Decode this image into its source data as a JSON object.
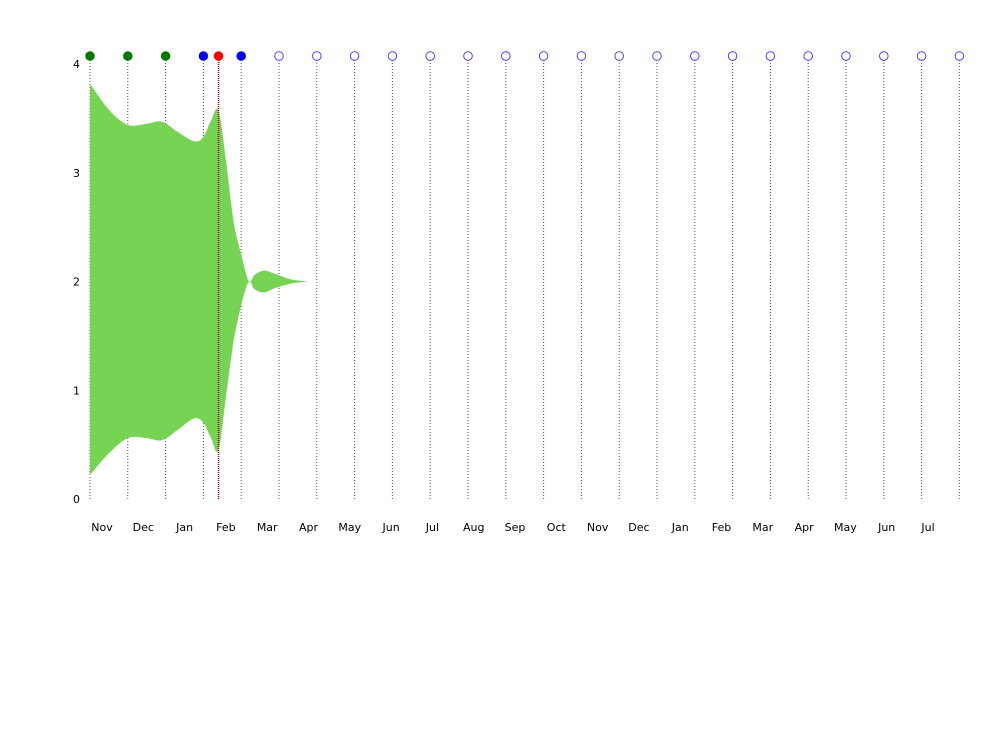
{
  "chart_data": {
    "type": "area",
    "title": "",
    "xlabel": "",
    "ylabel": "",
    "ylim": [
      0,
      4
    ],
    "y_ticks": [
      "0",
      "1",
      "2",
      "3",
      "4"
    ],
    "x_tick_labels": [
      "Nov",
      "Dec",
      "Jan",
      "Feb",
      "Mar",
      "Apr",
      "May",
      "Jun",
      "Jul",
      "Aug",
      "Sep",
      "Oct",
      "Nov",
      "Dec",
      "Jan",
      "Feb",
      "Mar",
      "Apr",
      "May",
      "Jun",
      "Jul"
    ],
    "grid": "vertical dotted lines at each marker",
    "legend": "none",
    "colors": {
      "band": "#77d353",
      "past_marker": "#007700",
      "recent_marker": "#0000ff",
      "current_marker": "#ff0000",
      "future_marker_outline": "#3333ff",
      "current_line": "#aa0000",
      "grid_line": "#555555"
    },
    "markers": [
      {
        "t": 0.0,
        "state": "past"
      },
      {
        "t": 1.0,
        "state": "past"
      },
      {
        "t": 2.0,
        "state": "past"
      },
      {
        "t": 3.0,
        "state": "recent"
      },
      {
        "t": 3.4,
        "state": "current"
      },
      {
        "t": 4.0,
        "state": "recent"
      },
      {
        "t": 5.0,
        "state": "future"
      },
      {
        "t": 6.0,
        "state": "future"
      },
      {
        "t": 7.0,
        "state": "future"
      },
      {
        "t": 8.0,
        "state": "future"
      },
      {
        "t": 9.0,
        "state": "future"
      },
      {
        "t": 10.0,
        "state": "future"
      },
      {
        "t": 11.0,
        "state": "future"
      },
      {
        "t": 12.0,
        "state": "future"
      },
      {
        "t": 13.0,
        "state": "future"
      },
      {
        "t": 14.0,
        "state": "future"
      },
      {
        "t": 15.0,
        "state": "future"
      },
      {
        "t": 16.0,
        "state": "future"
      },
      {
        "t": 17.0,
        "state": "future"
      },
      {
        "t": 18.0,
        "state": "future"
      },
      {
        "t": 19.0,
        "state": "future"
      },
      {
        "t": 20.0,
        "state": "future"
      },
      {
        "t": 21.0,
        "state": "future"
      },
      {
        "t": 22.0,
        "state": "future"
      },
      {
        "t": 23.0,
        "state": "future"
      }
    ],
    "band": {
      "upper": [
        [
          0.0,
          3.82
        ],
        [
          0.5,
          3.58
        ],
        [
          1.0,
          3.44
        ],
        [
          1.5,
          3.45
        ],
        [
          1.9,
          3.47
        ],
        [
          2.3,
          3.38
        ],
        [
          2.75,
          3.29
        ],
        [
          3.0,
          3.33
        ],
        [
          3.2,
          3.48
        ],
        [
          3.4,
          3.57
        ],
        [
          3.6,
          3.1
        ],
        [
          3.8,
          2.55
        ],
        [
          4.0,
          2.25
        ],
        [
          4.2,
          2.0
        ],
        [
          4.35,
          2.06
        ],
        [
          4.6,
          2.1
        ],
        [
          4.9,
          2.07
        ],
        [
          5.3,
          2.02
        ],
        [
          5.75,
          2.0
        ]
      ],
      "lower": [
        [
          0.0,
          0.22
        ],
        [
          0.5,
          0.42
        ],
        [
          1.0,
          0.56
        ],
        [
          1.5,
          0.56
        ],
        [
          1.9,
          0.54
        ],
        [
          2.3,
          0.63
        ],
        [
          2.75,
          0.74
        ],
        [
          3.0,
          0.7
        ],
        [
          3.2,
          0.56
        ],
        [
          3.4,
          0.45
        ],
        [
          3.6,
          0.95
        ],
        [
          3.8,
          1.45
        ],
        [
          4.0,
          1.78
        ],
        [
          4.2,
          2.0
        ],
        [
          4.35,
          1.93
        ],
        [
          4.6,
          1.9
        ],
        [
          4.9,
          1.94
        ],
        [
          5.3,
          1.98
        ],
        [
          5.75,
          2.0
        ]
      ]
    }
  }
}
